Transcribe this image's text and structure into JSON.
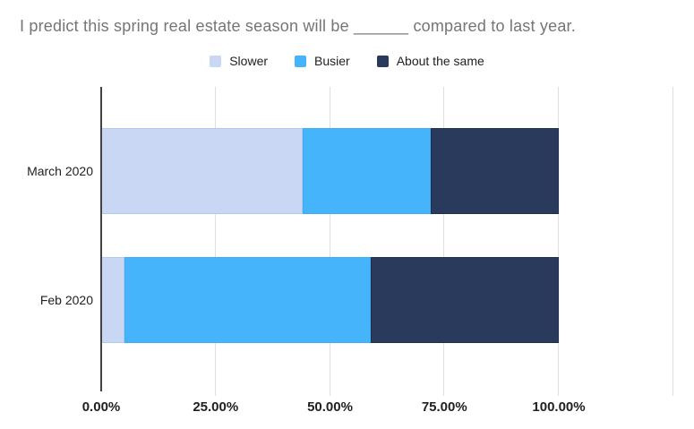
{
  "chart_data": {
    "type": "bar",
    "orientation": "horizontal",
    "stacked": true,
    "title": "I predict this spring real estate season will be ______ compared to last year.",
    "xlabel": "",
    "ylabel": "",
    "categories": [
      "March 2020",
      "Feb 2020"
    ],
    "series": [
      {
        "name": "Slower",
        "color": "#c9d7f5",
        "border": "#b4c7ef",
        "values": [
          44,
          5
        ]
      },
      {
        "name": "Busier",
        "color": "#45b4fa",
        "border": "#3fadf2",
        "values": [
          28,
          54
        ]
      },
      {
        "name": "About the same",
        "color": "#2a3a5c",
        "border": "#22304e",
        "values": [
          28,
          41
        ]
      }
    ],
    "x_ticks": [
      "0.00%",
      "25.00%",
      "50.00%",
      "75.00%",
      "100.00%"
    ],
    "xlim": [
      0,
      125
    ],
    "grid": true,
    "legend_position": "top",
    "colors": {
      "background": "#ffffff",
      "gridline": "#e0e0e0",
      "axis_line": "#424242",
      "title_text": "#757575",
      "label_text": "#212121"
    }
  }
}
